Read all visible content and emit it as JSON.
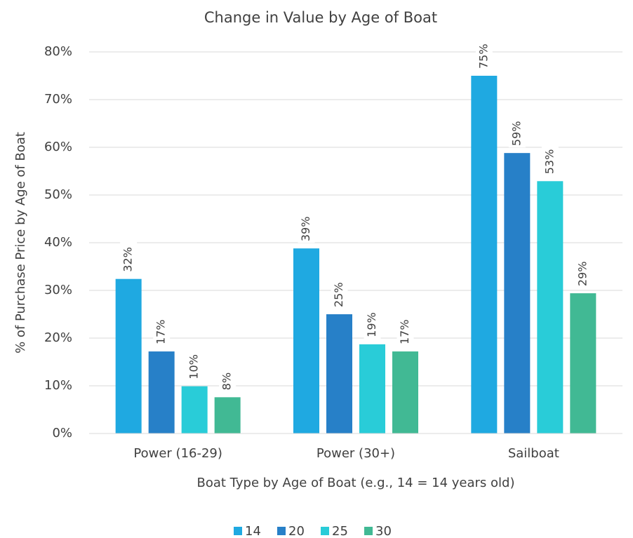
{
  "chart_data": {
    "type": "bar",
    "title": "Change in Value by Age of Boat",
    "x_label": "Boat Type by Age of Boat (e.g., 14 = 14 years old)",
    "y_label": "% of Purchase Price by Age of Boat",
    "categories": [
      "Power (16-29)",
      "Power (30+)",
      "Sailboat"
    ],
    "series": [
      {
        "name": "14",
        "color": "#1fa9e1",
        "values": [
          32.4,
          38.8,
          75.0
        ],
        "value_labels": [
          "32%",
          "39%",
          "75%"
        ]
      },
      {
        "name": "20",
        "color": "#2780c8",
        "values": [
          17.2,
          25.0,
          58.8
        ],
        "value_labels": [
          "17%",
          "25%",
          "59%"
        ]
      },
      {
        "name": "25",
        "color": "#29ccd8",
        "values": [
          9.9,
          18.7,
          52.9
        ],
        "value_labels": [
          "10%",
          "19%",
          "53%"
        ]
      },
      {
        "name": "30",
        "color": "#41b994",
        "values": [
          7.6,
          17.2,
          29.4
        ],
        "value_labels": [
          "8%",
          "17%",
          "29%"
        ]
      }
    ],
    "ylim": [
      0,
      80
    ],
    "yticks": [
      {
        "value": 0,
        "label": "0%"
      },
      {
        "value": 10,
        "label": "10%"
      },
      {
        "value": 20,
        "label": "20%"
      },
      {
        "value": 30,
        "label": "30%"
      },
      {
        "value": 40,
        "label": "40%"
      },
      {
        "value": 50,
        "label": "50%"
      },
      {
        "value": 60,
        "label": "60%"
      },
      {
        "value": 70,
        "label": "70%"
      },
      {
        "value": 80,
        "label": "80%"
      }
    ],
    "grid": true,
    "legend": "bottom"
  }
}
